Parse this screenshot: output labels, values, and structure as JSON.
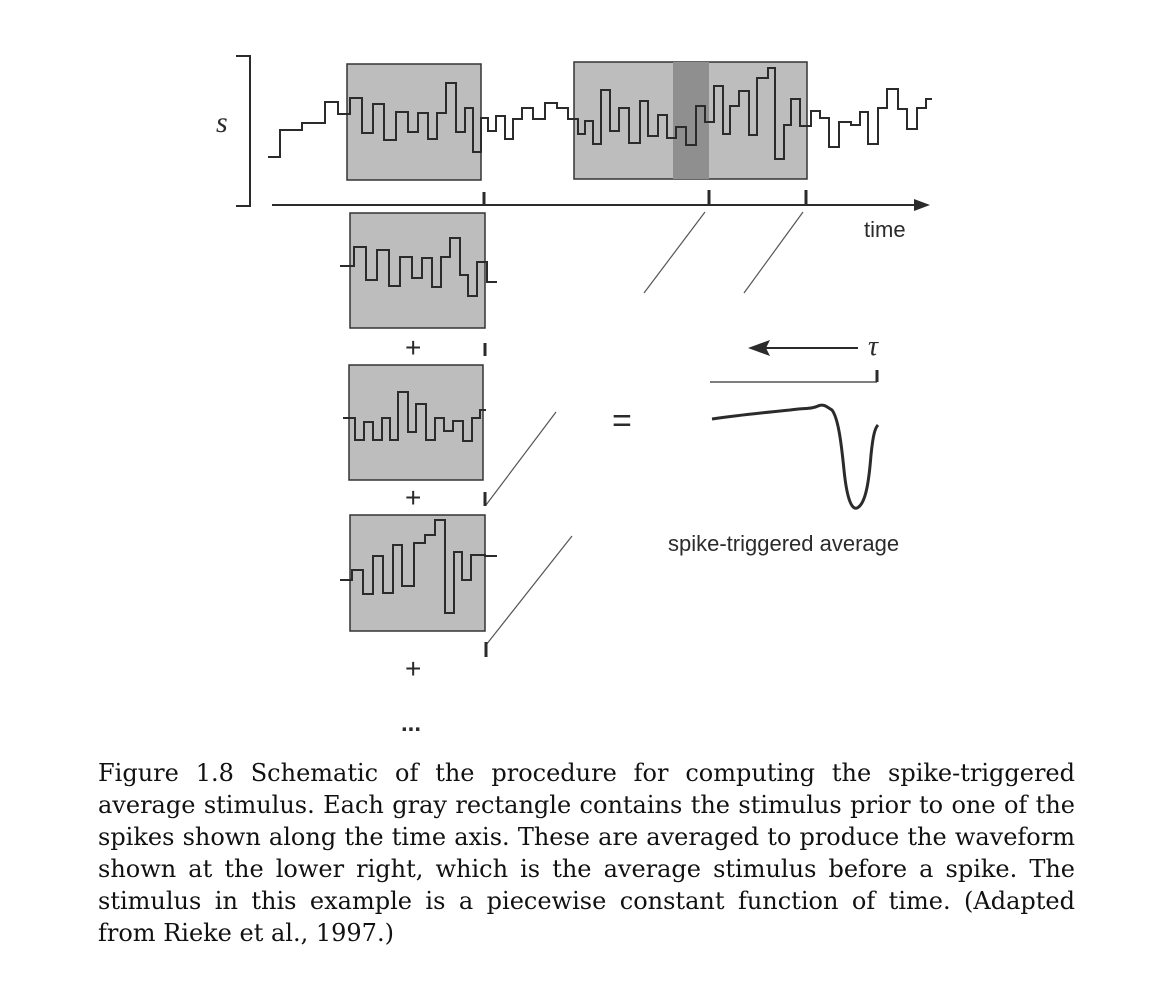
{
  "figure": {
    "s_label": "s",
    "time_label": "time",
    "tau_label": "τ",
    "equals": "=",
    "plus": "+",
    "ellipsis": "...",
    "sta_label": "spike-triggered average",
    "colors": {
      "box_fill": "#bdbdbd",
      "box_dark": "#8f8f8f",
      "ink": "#2b2b2b"
    }
  },
  "caption": {
    "lines": [
      "Figure 1.8 Schematic of the procedure for computing the spike-triggered",
      "average stimulus. Each gray rectangle contains the stimulus prior to one of the",
      "spikes shown along the time axis. These are averaged to produce the waveform",
      "shown at the lower right, which is the average stimulus before a spike. The",
      "stimulus in this example is a piecewise constant function of time. (Adapted",
      "from Rieke et al., 1997.)"
    ]
  }
}
